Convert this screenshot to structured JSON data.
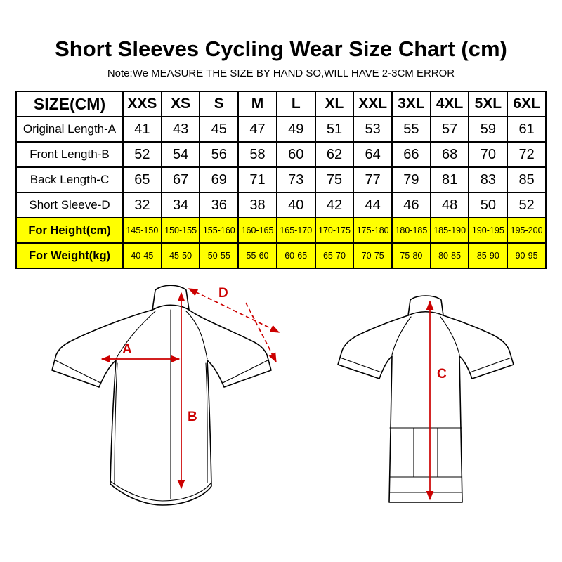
{
  "title": "Short Sleeves Cycling Wear Size Chart (cm)",
  "note": "Note:We MEASURE THE SIZE BY HAND SO,WILL HAVE 2-3CM ERROR",
  "colors": {
    "annotation": "#cc0000",
    "highlight": "#ffff00",
    "table_border": "#000000"
  },
  "chart_data": {
    "type": "table",
    "title": "Short Sleeves Cycling Wear Size Chart (cm)",
    "header": [
      "SIZE(CM)",
      "XXS",
      "XS",
      "S",
      "M",
      "L",
      "XL",
      "XXL",
      "3XL",
      "4XL",
      "5XL",
      "6XL"
    ],
    "rows": [
      {
        "label": "Original Length-A",
        "highlight": false,
        "values": [
          "41",
          "43",
          "45",
          "47",
          "49",
          "51",
          "53",
          "55",
          "57",
          "59",
          "61"
        ]
      },
      {
        "label": "Front Length-B",
        "highlight": false,
        "values": [
          "52",
          "54",
          "56",
          "58",
          "60",
          "62",
          "64",
          "66",
          "68",
          "70",
          "72"
        ]
      },
      {
        "label": "Back Length-C",
        "highlight": false,
        "values": [
          "65",
          "67",
          "69",
          "71",
          "73",
          "75",
          "77",
          "79",
          "81",
          "83",
          "85"
        ]
      },
      {
        "label": "Short Sleeve-D",
        "highlight": false,
        "values": [
          "32",
          "34",
          "36",
          "38",
          "40",
          "42",
          "44",
          "46",
          "48",
          "50",
          "52"
        ]
      },
      {
        "label": "For Height(cm)",
        "highlight": true,
        "values": [
          "145-150",
          "150-155",
          "155-160",
          "160-165",
          "165-170",
          "170-175",
          "175-180",
          "180-185",
          "185-190",
          "190-195",
          "195-200"
        ]
      },
      {
        "label": "For Weight(kg)",
        "highlight": true,
        "values": [
          "40-45",
          "45-50",
          "50-55",
          "55-60",
          "60-65",
          "65-70",
          "70-75",
          "75-80",
          "80-85",
          "85-90",
          "90-95"
        ]
      }
    ]
  },
  "diagram": {
    "labels": {
      "a": "A",
      "b": "B",
      "c": "C",
      "d": "D"
    }
  }
}
